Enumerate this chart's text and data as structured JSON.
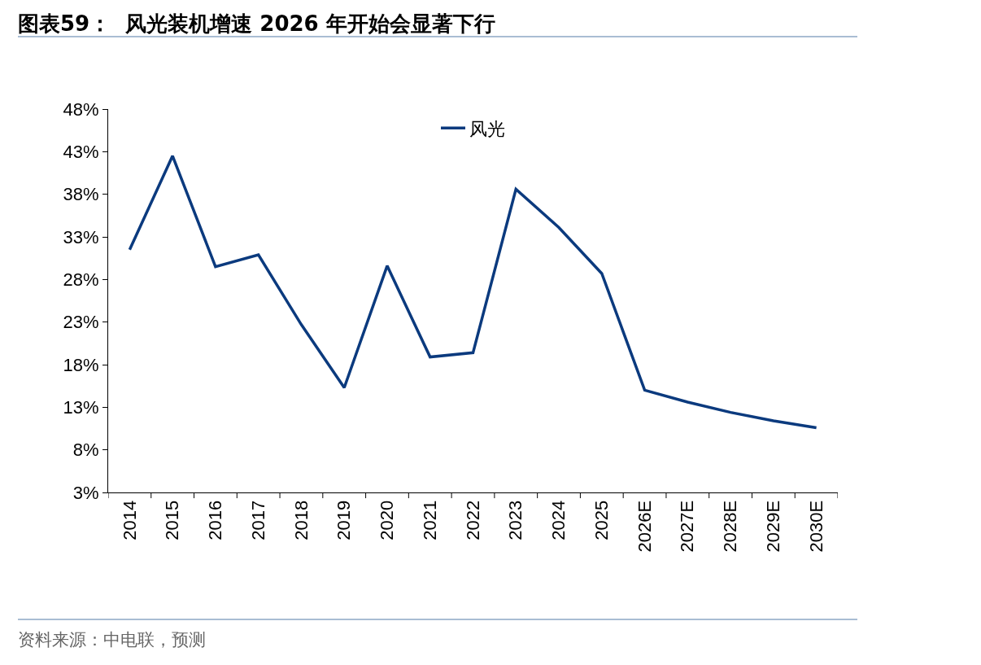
{
  "chart_data": {
    "type": "line",
    "title": "图表59：  风光装机增速 2026 年开始会显著下行",
    "categories": [
      "2014",
      "2015",
      "2016",
      "2017",
      "2018",
      "2019",
      "2020",
      "2021",
      "2022",
      "2023",
      "2024",
      "2025",
      "2026E",
      "2027E",
      "2028E",
      "2029E",
      "2030E"
    ],
    "series": [
      {
        "name": "风光",
        "color": "#0b3a7e",
        "values": [
          31.5,
          42.5,
          29.5,
          30.9,
          22.7,
          15.3,
          29.6,
          18.9,
          19.4,
          38.6,
          34.1,
          28.7,
          15.0,
          13.6,
          12.4,
          11.4,
          10.6
        ]
      }
    ],
    "ylim": [
      3,
      48
    ],
    "yticks": [
      {
        "value": 3,
        "label": "3%"
      },
      {
        "value": 8,
        "label": "8%"
      },
      {
        "value": 13,
        "label": "13%"
      },
      {
        "value": 18,
        "label": "18%"
      },
      {
        "value": 23,
        "label": "23%"
      },
      {
        "value": 28,
        "label": "28%"
      },
      {
        "value": 33,
        "label": "33%"
      },
      {
        "value": 38,
        "label": "38%"
      },
      {
        "value": 43,
        "label": "43%"
      },
      {
        "value": 48,
        "label": "48%"
      }
    ],
    "grid": false,
    "legend": "top",
    "marker": "none",
    "line_style": "solid",
    "annotations": [
      "资料来源：中电联，预测"
    ]
  }
}
